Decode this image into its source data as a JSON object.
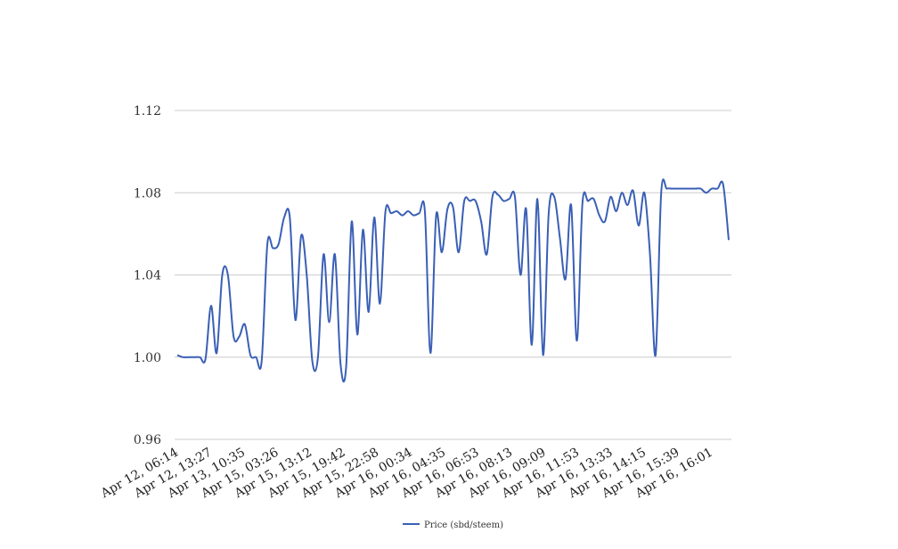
{
  "chart_data": {
    "type": "line",
    "title": "",
    "xlabel": "",
    "ylabel": "",
    "ylim": [
      0.96,
      1.12
    ],
    "yticks": [
      0.96,
      1.0,
      1.04,
      1.08,
      1.12
    ],
    "ytick_labels": [
      "0.96",
      "1.00",
      "1.04",
      "1.08",
      "1.12"
    ],
    "xtick_labels": [
      "Apr 12, 06:14",
      "Apr 12, 13:27",
      "Apr 13, 10:35",
      "Apr 15, 03:26",
      "Apr 15, 13:12",
      "Apr 15, 19:42",
      "Apr 15, 22:58",
      "Apr 16, 00:34",
      "Apr 16, 04:35",
      "Apr 16, 06:53",
      "Apr 16, 08:13",
      "Apr 16, 09:09",
      "Apr 16, 11:53",
      "Apr 16, 13:33",
      "Apr 16, 14:15",
      "Apr 16, 15:39",
      "Apr 16, 16:01"
    ],
    "grid": true,
    "legend_position": "bottom-center",
    "series": [
      {
        "name": "Price (sbd/steem)",
        "color": "#3a5fb5",
        "values": [
          1.001,
          1.0,
          1.0,
          1.0,
          1.0,
          0.999,
          1.025,
          1.002,
          1.04,
          1.04,
          1.01,
          1.01,
          1.016,
          1.001,
          1.0,
          0.998,
          1.055,
          1.053,
          1.055,
          1.068,
          1.068,
          1.018,
          1.059,
          1.04,
          0.998,
          1.0,
          1.05,
          1.017,
          1.05,
          0.997,
          0.995,
          1.066,
          1.011,
          1.062,
          1.022,
          1.068,
          1.026,
          1.071,
          1.07,
          1.071,
          1.069,
          1.071,
          1.069,
          1.07,
          1.071,
          1.002,
          1.069,
          1.051,
          1.072,
          1.073,
          1.051,
          1.076,
          1.076,
          1.076,
          1.066,
          1.05,
          1.078,
          1.079,
          1.076,
          1.077,
          1.078,
          1.04,
          1.072,
          1.006,
          1.077,
          1.001,
          1.07,
          1.078,
          1.058,
          1.038,
          1.074,
          1.008,
          1.075,
          1.076,
          1.077,
          1.069,
          1.066,
          1.078,
          1.071,
          1.08,
          1.074,
          1.081,
          1.064,
          1.08,
          1.05,
          1.001,
          1.08,
          1.082,
          1.082,
          1.082,
          1.082,
          1.082,
          1.082,
          1.082,
          1.08,
          1.082,
          1.082,
          1.084,
          1.057
        ]
      }
    ]
  }
}
